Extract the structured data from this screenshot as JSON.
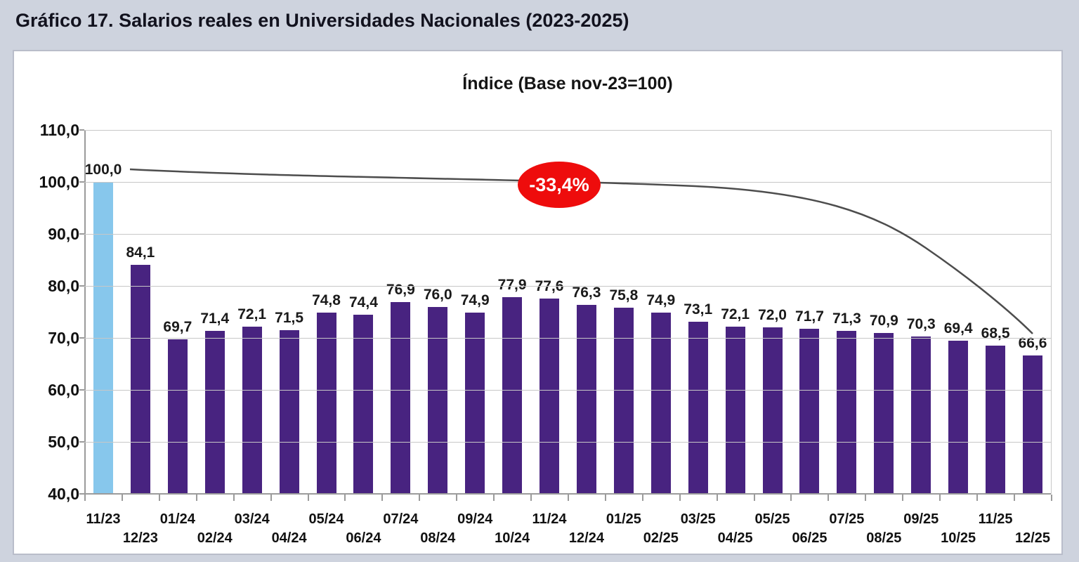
{
  "header": {
    "title": "Gráfico 17. Salarios reales en Universidades Nacionales (2023-2025)"
  },
  "chart_data": {
    "type": "bar",
    "title": "Índice (Base nov-23=100)",
    "categories": [
      "11/23",
      "12/23",
      "01/24",
      "02/24",
      "03/24",
      "04/24",
      "05/24",
      "06/24",
      "07/24",
      "08/24",
      "09/24",
      "10/24",
      "11/24",
      "12/24",
      "01/25",
      "02/25",
      "03/25",
      "04/25",
      "05/25",
      "06/25",
      "07/25",
      "08/25",
      "09/25",
      "10/25",
      "11/25",
      "12/25"
    ],
    "values": [
      100.0,
      84.1,
      69.7,
      71.4,
      72.1,
      71.5,
      74.8,
      74.4,
      76.9,
      76.0,
      74.9,
      77.9,
      77.6,
      76.3,
      75.8,
      74.9,
      73.1,
      72.1,
      72.0,
      71.7,
      71.3,
      70.9,
      70.3,
      69.4,
      68.5,
      66.6
    ],
    "ylim": [
      40,
      110
    ],
    "ytick_step": 10,
    "decimal_separator": ",",
    "grid": true,
    "legend": "none",
    "annotation": {
      "text": "-33,4%",
      "shape": "ellipse",
      "bg_color": "#ee0c0c",
      "text_color": "#ffffff"
    },
    "decline_curve": {
      "description": "smooth curve from top of first bar (100,0) descending to top of last bar (66,6)",
      "color": "#4d4d4d"
    },
    "colors": {
      "first_bar": "#87c7ec",
      "bars": "#482380",
      "gridline": "#c7c7c7",
      "axis": "#9b9b9b",
      "panel_bg": "#ffffff",
      "page_bg": "#ced3de"
    }
  }
}
